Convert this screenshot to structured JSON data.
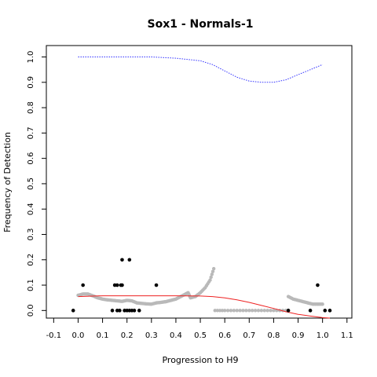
{
  "chart_data": {
    "type": "scatter",
    "title": "Sox1 - Normals-1",
    "xlabel": "Progression to H9",
    "ylabel": "Frequency of Detection",
    "xlim": [
      -0.13,
      1.12
    ],
    "ylim": [
      -0.03,
      1.045
    ],
    "x_ticks": [
      -0.1,
      0.0,
      0.1,
      0.2,
      0.3,
      0.4,
      0.5,
      0.6,
      0.7,
      0.8,
      0.9,
      1.0,
      1.1
    ],
    "x_tick_labels": [
      "-0.1",
      "0.0",
      "0.1",
      "0.2",
      "0.3",
      "0.4",
      "0.5",
      "0.6",
      "0.7",
      "0.8",
      "0.9",
      "1.0",
      "1.1"
    ],
    "y_ticks": [
      0.0,
      0.1,
      0.2,
      0.3,
      0.4,
      0.5,
      0.6,
      0.7,
      0.8,
      0.9,
      1.0
    ],
    "y_tick_labels": [
      "0.0",
      "0.1",
      "0.2",
      "0.3",
      "0.4",
      "0.5",
      "0.6",
      "0.7",
      "0.8",
      "0.9",
      "1.0"
    ],
    "grid": false,
    "legend": "none",
    "series": [
      {
        "kind": "points",
        "color": "#000000",
        "points": [
          [
            -0.02,
            0.0
          ],
          [
            0.02,
            0.1
          ],
          [
            0.14,
            0.0
          ],
          [
            0.15,
            0.1
          ],
          [
            0.16,
            0.0
          ],
          [
            0.16,
            0.1
          ],
          [
            0.17,
            0.0
          ],
          [
            0.175,
            0.1
          ],
          [
            0.18,
            0.2
          ],
          [
            0.18,
            0.1
          ],
          [
            0.19,
            0.0
          ],
          [
            0.2,
            0.0
          ],
          [
            0.21,
            0.0
          ],
          [
            0.21,
            0.2
          ],
          [
            0.22,
            0.0
          ],
          [
            0.23,
            0.0
          ],
          [
            0.25,
            0.0
          ],
          [
            0.32,
            0.1
          ],
          [
            0.86,
            0.0
          ],
          [
            0.95,
            0.0
          ],
          [
            0.98,
            0.1
          ],
          [
            1.01,
            0.0
          ],
          [
            1.03,
            0.0
          ]
        ]
      },
      {
        "kind": "smooth-points",
        "color": "#b9b9b9",
        "points": [
          [
            0.0,
            0.06
          ],
          [
            0.02,
            0.065
          ],
          [
            0.04,
            0.065
          ],
          [
            0.06,
            0.058
          ],
          [
            0.08,
            0.05
          ],
          [
            0.1,
            0.045
          ],
          [
            0.12,
            0.042
          ],
          [
            0.14,
            0.04
          ],
          [
            0.16,
            0.038
          ],
          [
            0.18,
            0.036
          ],
          [
            0.2,
            0.04
          ],
          [
            0.22,
            0.038
          ],
          [
            0.24,
            0.03
          ],
          [
            0.26,
            0.028
          ],
          [
            0.28,
            0.026
          ],
          [
            0.3,
            0.025
          ],
          [
            0.32,
            0.03
          ],
          [
            0.34,
            0.032
          ],
          [
            0.36,
            0.035
          ],
          [
            0.38,
            0.04
          ],
          [
            0.4,
            0.045
          ],
          [
            0.42,
            0.055
          ],
          [
            0.44,
            0.065
          ],
          [
            0.45,
            0.07
          ],
          [
            0.46,
            0.05
          ],
          [
            0.48,
            0.055
          ],
          [
            0.5,
            0.07
          ],
          [
            0.52,
            0.09
          ],
          [
            0.54,
            0.12
          ],
          [
            0.555,
            0.165
          ],
          [
            0.56,
            0.0
          ],
          [
            0.6,
            0.0
          ],
          [
            0.65,
            0.0
          ],
          [
            0.7,
            0.0
          ],
          [
            0.75,
            0.0
          ],
          [
            0.8,
            0.0
          ],
          [
            0.85,
            0.0
          ],
          [
            0.86,
            0.055
          ],
          [
            0.88,
            0.045
          ],
          [
            0.9,
            0.04
          ],
          [
            0.92,
            0.035
          ],
          [
            0.94,
            0.03
          ],
          [
            0.96,
            0.025
          ],
          [
            0.98,
            0.025
          ],
          [
            1.0,
            0.025
          ]
        ]
      },
      {
        "kind": "line",
        "style": "dotted",
        "color": "#3333ff",
        "points": [
          [
            0.0,
            1.0
          ],
          [
            0.1,
            1.0
          ],
          [
            0.2,
            1.0
          ],
          [
            0.3,
            1.0
          ],
          [
            0.4,
            0.995
          ],
          [
            0.5,
            0.985
          ],
          [
            0.55,
            0.97
          ],
          [
            0.6,
            0.945
          ],
          [
            0.65,
            0.92
          ],
          [
            0.7,
            0.905
          ],
          [
            0.75,
            0.9
          ],
          [
            0.8,
            0.9
          ],
          [
            0.85,
            0.91
          ],
          [
            0.9,
            0.93
          ],
          [
            0.95,
            0.95
          ],
          [
            1.0,
            0.97
          ]
        ]
      },
      {
        "kind": "line",
        "style": "solid",
        "color": "#ee2222",
        "points": [
          [
            0.0,
            0.055
          ],
          [
            0.1,
            0.058
          ],
          [
            0.2,
            0.058
          ],
          [
            0.3,
            0.058
          ],
          [
            0.4,
            0.058
          ],
          [
            0.5,
            0.057
          ],
          [
            0.55,
            0.055
          ],
          [
            0.6,
            0.05
          ],
          [
            0.65,
            0.042
          ],
          [
            0.7,
            0.032
          ],
          [
            0.75,
            0.02
          ],
          [
            0.8,
            0.008
          ],
          [
            0.85,
            -0.005
          ],
          [
            0.9,
            -0.015
          ],
          [
            0.95,
            -0.022
          ],
          [
            1.0,
            -0.028
          ],
          [
            1.03,
            -0.03
          ]
        ]
      }
    ]
  }
}
